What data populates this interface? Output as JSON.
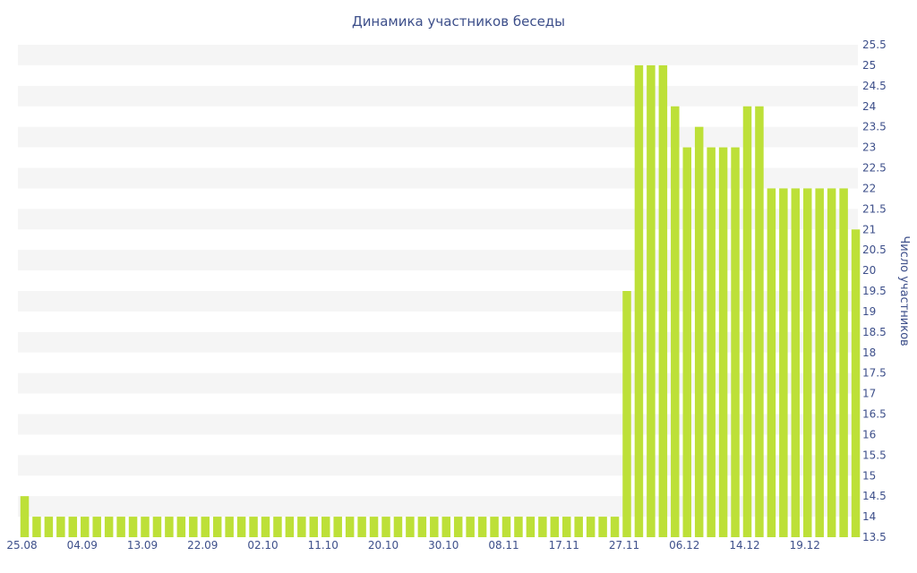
{
  "chart_data": {
    "type": "bar",
    "title": "Динамика участников беседы",
    "xlabel": "",
    "ylabel": "Число участников",
    "ylim": [
      13.5,
      25.5
    ],
    "y_ticks": [
      "13.5",
      "14",
      "14.5",
      "15",
      "15.5",
      "16",
      "16.5",
      "17",
      "17.5",
      "18",
      "18.5",
      "19",
      "19.5",
      "20",
      "20.5",
      "21",
      "21.5",
      "22",
      "22.5",
      "23",
      "23.5",
      "24",
      "24.5",
      "25",
      "25.5"
    ],
    "x_tick_labels": [
      "25.08",
      "04.09",
      "13.09",
      "22.09",
      "02.10",
      "11.10",
      "20.10",
      "30.10",
      "08.11",
      "17.11",
      "27.11",
      "06.12",
      "14.12",
      "19.12"
    ],
    "x_tick_positions": [
      0,
      5,
      10,
      15,
      20,
      25,
      30,
      35,
      40,
      45,
      50,
      55,
      60,
      65
    ],
    "grid": "horizontal-bands",
    "bar_color": "#bde038",
    "band_color": "#f5f5f5",
    "text_color": "#3d4f8a",
    "values": [
      14.5,
      14,
      14,
      14,
      14,
      14,
      14,
      14,
      14,
      14,
      14,
      14,
      14,
      14,
      14,
      14,
      14,
      14,
      14,
      14,
      14,
      14,
      14,
      14,
      14,
      14,
      14,
      14,
      14,
      14,
      14,
      14,
      14,
      14,
      14,
      14,
      14,
      14,
      14,
      14,
      14,
      14,
      14,
      14,
      14,
      14,
      14,
      14,
      14,
      14,
      19.5,
      25,
      25,
      25,
      24,
      23,
      23.5,
      23,
      23,
      23,
      24,
      24,
      22,
      22,
      22,
      22,
      22,
      22,
      22,
      21
    ]
  }
}
